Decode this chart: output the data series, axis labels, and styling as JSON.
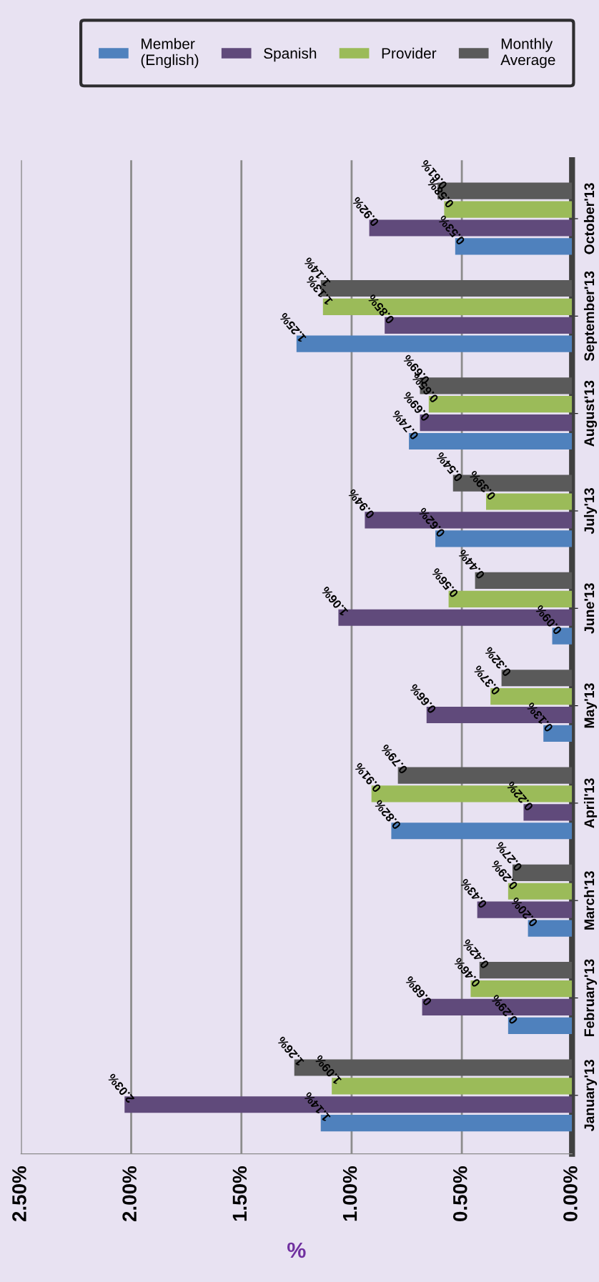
{
  "chart_data": {
    "type": "bar",
    "orientation": "horizontal",
    "xlabel": "%",
    "categories": [
      "October'13",
      "September'13",
      "August'13",
      "July'13",
      "June'13",
      "May'13",
      "April'13",
      "March'13",
      "February'13",
      "January'13"
    ],
    "series": [
      {
        "name": "Member\n(English)",
        "color": "#4f81bd",
        "values": [
          0.53,
          1.25,
          0.74,
          0.62,
          0.09,
          0.13,
          0.82,
          0.2,
          0.29,
          1.14
        ],
        "value_labels": [
          "0.53%",
          "1.25%",
          "0.74%",
          "0.62%",
          "0.09%",
          "0.13%",
          "0.82%",
          "0.20%",
          "0.29%",
          "1.14%"
        ]
      },
      {
        "name": "Spanish",
        "color": "#604a7b",
        "values": [
          0.92,
          0.85,
          0.69,
          0.94,
          1.06,
          0.66,
          0.22,
          0.43,
          0.68,
          2.03
        ],
        "value_labels": [
          "0.92%",
          "0.85%",
          "0.69%",
          "0.94%",
          "1.06%",
          "0.66%",
          "0.22%",
          "0.43%",
          "0.68%",
          "2.03%"
        ]
      },
      {
        "name": "Provider",
        "color": "#9bbb59",
        "values": [
          0.58,
          1.13,
          0.65,
          0.39,
          0.56,
          0.37,
          0.91,
          0.29,
          0.46,
          1.09
        ],
        "value_labels": [
          "0.58%",
          "1.13%",
          "0.65%",
          "0.39%",
          "0.56%",
          "0.37%",
          "0.91%",
          "0.29%",
          "0.46%",
          "1.09%"
        ]
      },
      {
        "name": "Monthly\nAverage",
        "color": "#5a5a5a",
        "values": [
          0.61,
          1.14,
          0.69,
          0.54,
          0.44,
          0.32,
          0.79,
          0.27,
          0.42,
          1.26
        ],
        "value_labels": [
          "0.61%",
          "1.14%",
          "0.69%",
          "0.54%",
          "0.44%",
          "0.32%",
          "0.79%",
          "0.27%",
          "0.42%",
          "1.26%"
        ]
      }
    ],
    "xlim": [
      2.5,
      0
    ],
    "xticks": [
      {
        "value": 2.5,
        "label": "2.50%"
      },
      {
        "value": 2.0,
        "label": "2.00%"
      },
      {
        "value": 1.5,
        "label": "1.50%"
      },
      {
        "value": 1.0,
        "label": "1.00%"
      },
      {
        "value": 0.5,
        "label": "0.50%"
      },
      {
        "value": 0,
        "label": "0.00%"
      }
    ],
    "grid": "x",
    "legend": "top right"
  }
}
